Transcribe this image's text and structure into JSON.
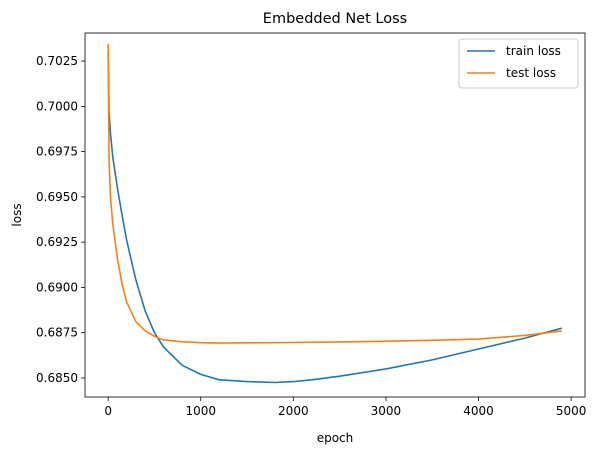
{
  "chart_data": {
    "type": "line",
    "title": "Embedded Net Loss",
    "xlabel": "epoch",
    "ylabel": "loss",
    "xlim": [
      -250,
      5150
    ],
    "ylim": [
      0.68395,
      0.70405
    ],
    "xticks": [
      0,
      1000,
      2000,
      3000,
      4000,
      5000
    ],
    "xtick_labels": [
      "0",
      "1000",
      "2000",
      "3000",
      "4000",
      "5000"
    ],
    "yticks": [
      0.685,
      0.6875,
      0.69,
      0.6925,
      0.695,
      0.6975,
      0.7,
      0.7025
    ],
    "ytick_labels": [
      "0.6850",
      "0.6875",
      "0.6900",
      "0.6925",
      "0.6950",
      "0.6975",
      "0.7000",
      "0.7025"
    ],
    "legend_position": "upper-right",
    "series": [
      {
        "name": "train loss",
        "color": "#1f77b4",
        "x": [
          0,
          10,
          25,
          50,
          100,
          150,
          200,
          300,
          400,
          500,
          600,
          800,
          1000,
          1200,
          1500,
          1800,
          2000,
          2200,
          2500,
          3000,
          3500,
          4000,
          4500,
          4900
        ],
        "y": [
          0.7029,
          0.6997,
          0.6985,
          0.6972,
          0.6955,
          0.694,
          0.6926,
          0.6904,
          0.6887,
          0.6875,
          0.6867,
          0.6857,
          0.6852,
          0.6849,
          0.6848,
          0.68475,
          0.6848,
          0.6849,
          0.6851,
          0.6855,
          0.686,
          0.6866,
          0.6872,
          0.68775
        ]
      },
      {
        "name": "test loss",
        "color": "#ff7f0e",
        "x": [
          0,
          10,
          25,
          50,
          100,
          150,
          200,
          300,
          400,
          500,
          600,
          800,
          1000,
          1200,
          1500,
          2000,
          2500,
          3000,
          3500,
          4000,
          4500,
          4900
        ],
        "y": [
          0.70345,
          0.697,
          0.695,
          0.6935,
          0.6916,
          0.6902,
          0.6892,
          0.6881,
          0.6876,
          0.6873,
          0.6871,
          0.687,
          0.68695,
          0.68693,
          0.68694,
          0.68696,
          0.68699,
          0.68703,
          0.68708,
          0.68715,
          0.68735,
          0.6876
        ]
      }
    ]
  }
}
